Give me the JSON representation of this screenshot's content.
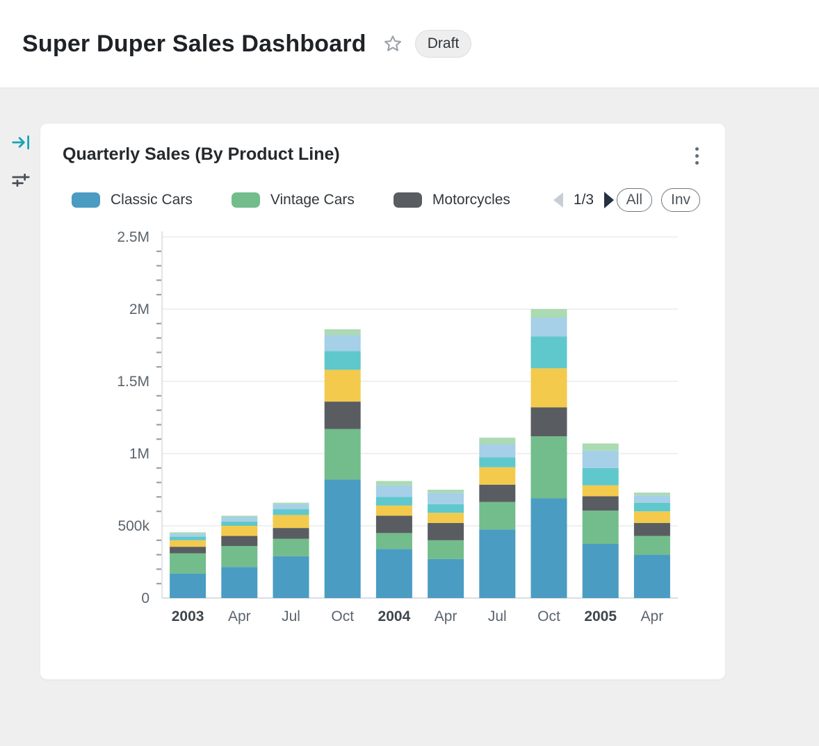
{
  "header": {
    "title": "Super Duper Sales Dashboard",
    "status_badge": "Draft"
  },
  "sidebar": {
    "icons": [
      {
        "name": "expand-panel-icon"
      },
      {
        "name": "filter-icon"
      }
    ]
  },
  "card": {
    "title": "Quarterly Sales (By Product Line)",
    "legend": {
      "visible_items": [
        {
          "label": "Classic Cars",
          "color": "#4a9cc2"
        },
        {
          "label": "Vintage Cars",
          "color": "#72bd8b"
        },
        {
          "label": "Motorcycles",
          "color": "#595d61"
        }
      ],
      "page_indicator": "1/3"
    },
    "buttons": {
      "all": "All",
      "inv": "Inv"
    }
  },
  "chart_data": {
    "type": "bar",
    "stacked": true,
    "title": "Quarterly Sales (By Product Line)",
    "categories": [
      "2003",
      "Apr",
      "Jul",
      "Oct",
      "2004",
      "Apr",
      "Jul",
      "Oct",
      "2005",
      "Apr"
    ],
    "emphasized_category_indexes": [
      0,
      4,
      8
    ],
    "series": [
      {
        "name": "Classic Cars",
        "color": "#4a9cc2",
        "values": [
          170000,
          215000,
          290000,
          820000,
          340000,
          270000,
          475000,
          690000,
          375000,
          300000
        ]
      },
      {
        "name": "Vintage Cars",
        "color": "#72bd8b",
        "values": [
          140000,
          145000,
          120000,
          350000,
          110000,
          130000,
          190000,
          430000,
          230000,
          130000
        ]
      },
      {
        "name": "Motorcycles",
        "color": "#595d61",
        "values": [
          45000,
          70000,
          75000,
          190000,
          120000,
          120000,
          120000,
          200000,
          100000,
          90000
        ]
      },
      {
        "name": "unlabeled-series-4",
        "color": "#f3ca4c",
        "values": [
          45000,
          70000,
          90000,
          220000,
          70000,
          70000,
          120000,
          270000,
          75000,
          80000
        ]
      },
      {
        "name": "unlabeled-series-5",
        "color": "#5fc8cc",
        "values": [
          25000,
          30000,
          40000,
          130000,
          60000,
          60000,
          70000,
          220000,
          120000,
          60000
        ]
      },
      {
        "name": "unlabeled-series-6",
        "color": "#a6cfe8",
        "values": [
          20000,
          30000,
          35000,
          110000,
          80000,
          80000,
          90000,
          130000,
          120000,
          50000
        ]
      },
      {
        "name": "unlabeled-series-7",
        "color": "#abdab3",
        "values": [
          10000,
          10000,
          10000,
          40000,
          30000,
          20000,
          45000,
          60000,
          50000,
          20000
        ]
      }
    ],
    "ylim": [
      0,
      2500000
    ],
    "yticks": [
      {
        "value": 0,
        "label": "0"
      },
      {
        "value": 500000,
        "label": "500k"
      },
      {
        "value": 1000000,
        "label": "1M"
      },
      {
        "value": 1500000,
        "label": "1.5M"
      },
      {
        "value": 2000000,
        "label": "2M"
      },
      {
        "value": 2500000,
        "label": "2.5M"
      }
    ],
    "minor_tick_step": 100000,
    "grid": true,
    "legend_position": "top",
    "legend_pages": 3,
    "legend_current_page": 1
  }
}
